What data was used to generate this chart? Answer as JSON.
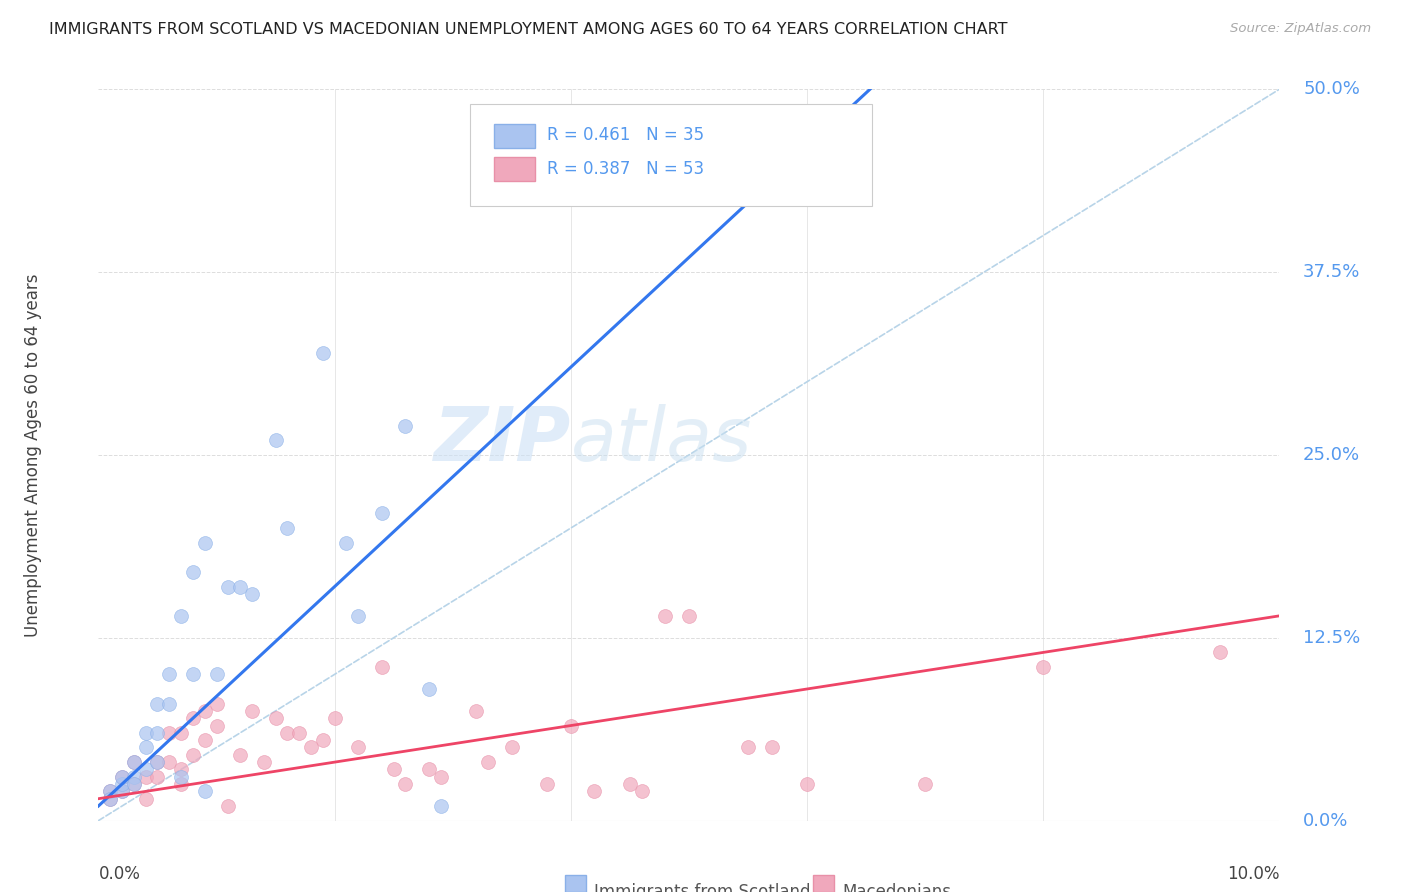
{
  "title": "IMMIGRANTS FROM SCOTLAND VS MACEDONIAN UNEMPLOYMENT AMONG AGES 60 TO 64 YEARS CORRELATION CHART",
  "source": "Source: ZipAtlas.com",
  "ylabel": "Unemployment Among Ages 60 to 64 years",
  "right_yticks": [
    "0.0%",
    "12.5%",
    "25.0%",
    "37.5%",
    "50.0%"
  ],
  "right_ytick_vals": [
    0.0,
    0.125,
    0.25,
    0.375,
    0.5
  ],
  "xlim": [
    0.0,
    0.1
  ],
  "ylim": [
    0.0,
    0.5
  ],
  "watermark_zip": "ZIP",
  "watermark_atlas": "atlas",
  "legend_scotland_r": "R = 0.461",
  "legend_scotland_n": "N = 35",
  "legend_macedonian_r": "R = 0.387",
  "legend_macedonian_n": "N = 53",
  "scotland_color": "#aac4f0",
  "scotland_edge_color": "#8ab0e8",
  "scotland_line_color": "#3377ee",
  "macedonian_color": "#f0a8bc",
  "macedonian_edge_color": "#e890a8",
  "macedonian_line_color": "#ee4466",
  "dashed_line_color": "#b8d4e8",
  "background_color": "#ffffff",
  "title_color": "#222222",
  "right_tick_color": "#5599ee",
  "grid_color": "#dddddd",
  "source_color": "#aaaaaa",
  "legend_text_color": "#5599ee",
  "bottom_label_color": "#555555",
  "scotland_scatter": [
    [
      0.001,
      0.02
    ],
    [
      0.001,
      0.015
    ],
    [
      0.002,
      0.02
    ],
    [
      0.002,
      0.025
    ],
    [
      0.002,
      0.03
    ],
    [
      0.003,
      0.03
    ],
    [
      0.003,
      0.04
    ],
    [
      0.003,
      0.025
    ],
    [
      0.004,
      0.035
    ],
    [
      0.004,
      0.05
    ],
    [
      0.004,
      0.06
    ],
    [
      0.005,
      0.06
    ],
    [
      0.005,
      0.04
    ],
    [
      0.005,
      0.08
    ],
    [
      0.006,
      0.08
    ],
    [
      0.006,
      0.1
    ],
    [
      0.007,
      0.14
    ],
    [
      0.007,
      0.03
    ],
    [
      0.008,
      0.1
    ],
    [
      0.008,
      0.17
    ],
    [
      0.009,
      0.19
    ],
    [
      0.009,
      0.02
    ],
    [
      0.01,
      0.1
    ],
    [
      0.011,
      0.16
    ],
    [
      0.012,
      0.16
    ],
    [
      0.013,
      0.155
    ],
    [
      0.015,
      0.26
    ],
    [
      0.016,
      0.2
    ],
    [
      0.019,
      0.32
    ],
    [
      0.021,
      0.19
    ],
    [
      0.022,
      0.14
    ],
    [
      0.024,
      0.21
    ],
    [
      0.026,
      0.27
    ],
    [
      0.028,
      0.09
    ],
    [
      0.029,
      0.01
    ]
  ],
  "macedonian_scatter": [
    [
      0.001,
      0.02
    ],
    [
      0.001,
      0.015
    ],
    [
      0.002,
      0.03
    ],
    [
      0.002,
      0.02
    ],
    [
      0.003,
      0.04
    ],
    [
      0.003,
      0.025
    ],
    [
      0.004,
      0.015
    ],
    [
      0.004,
      0.03
    ],
    [
      0.005,
      0.04
    ],
    [
      0.005,
      0.03
    ],
    [
      0.006,
      0.06
    ],
    [
      0.006,
      0.04
    ],
    [
      0.007,
      0.06
    ],
    [
      0.007,
      0.035
    ],
    [
      0.007,
      0.025
    ],
    [
      0.008,
      0.07
    ],
    [
      0.008,
      0.045
    ],
    [
      0.009,
      0.055
    ],
    [
      0.009,
      0.075
    ],
    [
      0.01,
      0.065
    ],
    [
      0.01,
      0.08
    ],
    [
      0.011,
      0.01
    ],
    [
      0.012,
      0.045
    ],
    [
      0.013,
      0.075
    ],
    [
      0.014,
      0.04
    ],
    [
      0.015,
      0.07
    ],
    [
      0.016,
      0.06
    ],
    [
      0.017,
      0.06
    ],
    [
      0.018,
      0.05
    ],
    [
      0.019,
      0.055
    ],
    [
      0.02,
      0.07
    ],
    [
      0.022,
      0.05
    ],
    [
      0.024,
      0.105
    ],
    [
      0.025,
      0.035
    ],
    [
      0.026,
      0.025
    ],
    [
      0.028,
      0.035
    ],
    [
      0.029,
      0.03
    ],
    [
      0.032,
      0.075
    ],
    [
      0.033,
      0.04
    ],
    [
      0.035,
      0.05
    ],
    [
      0.038,
      0.025
    ],
    [
      0.04,
      0.065
    ],
    [
      0.042,
      0.02
    ],
    [
      0.045,
      0.025
    ],
    [
      0.046,
      0.02
    ],
    [
      0.048,
      0.14
    ],
    [
      0.05,
      0.14
    ],
    [
      0.055,
      0.05
    ],
    [
      0.057,
      0.05
    ],
    [
      0.06,
      0.025
    ],
    [
      0.07,
      0.025
    ],
    [
      0.08,
      0.105
    ],
    [
      0.095,
      0.115
    ]
  ],
  "scotland_regression_slope": 7.5,
  "scotland_regression_intercept": 0.01,
  "macedonian_regression_slope": 1.25,
  "macedonian_regression_intercept": 0.015
}
